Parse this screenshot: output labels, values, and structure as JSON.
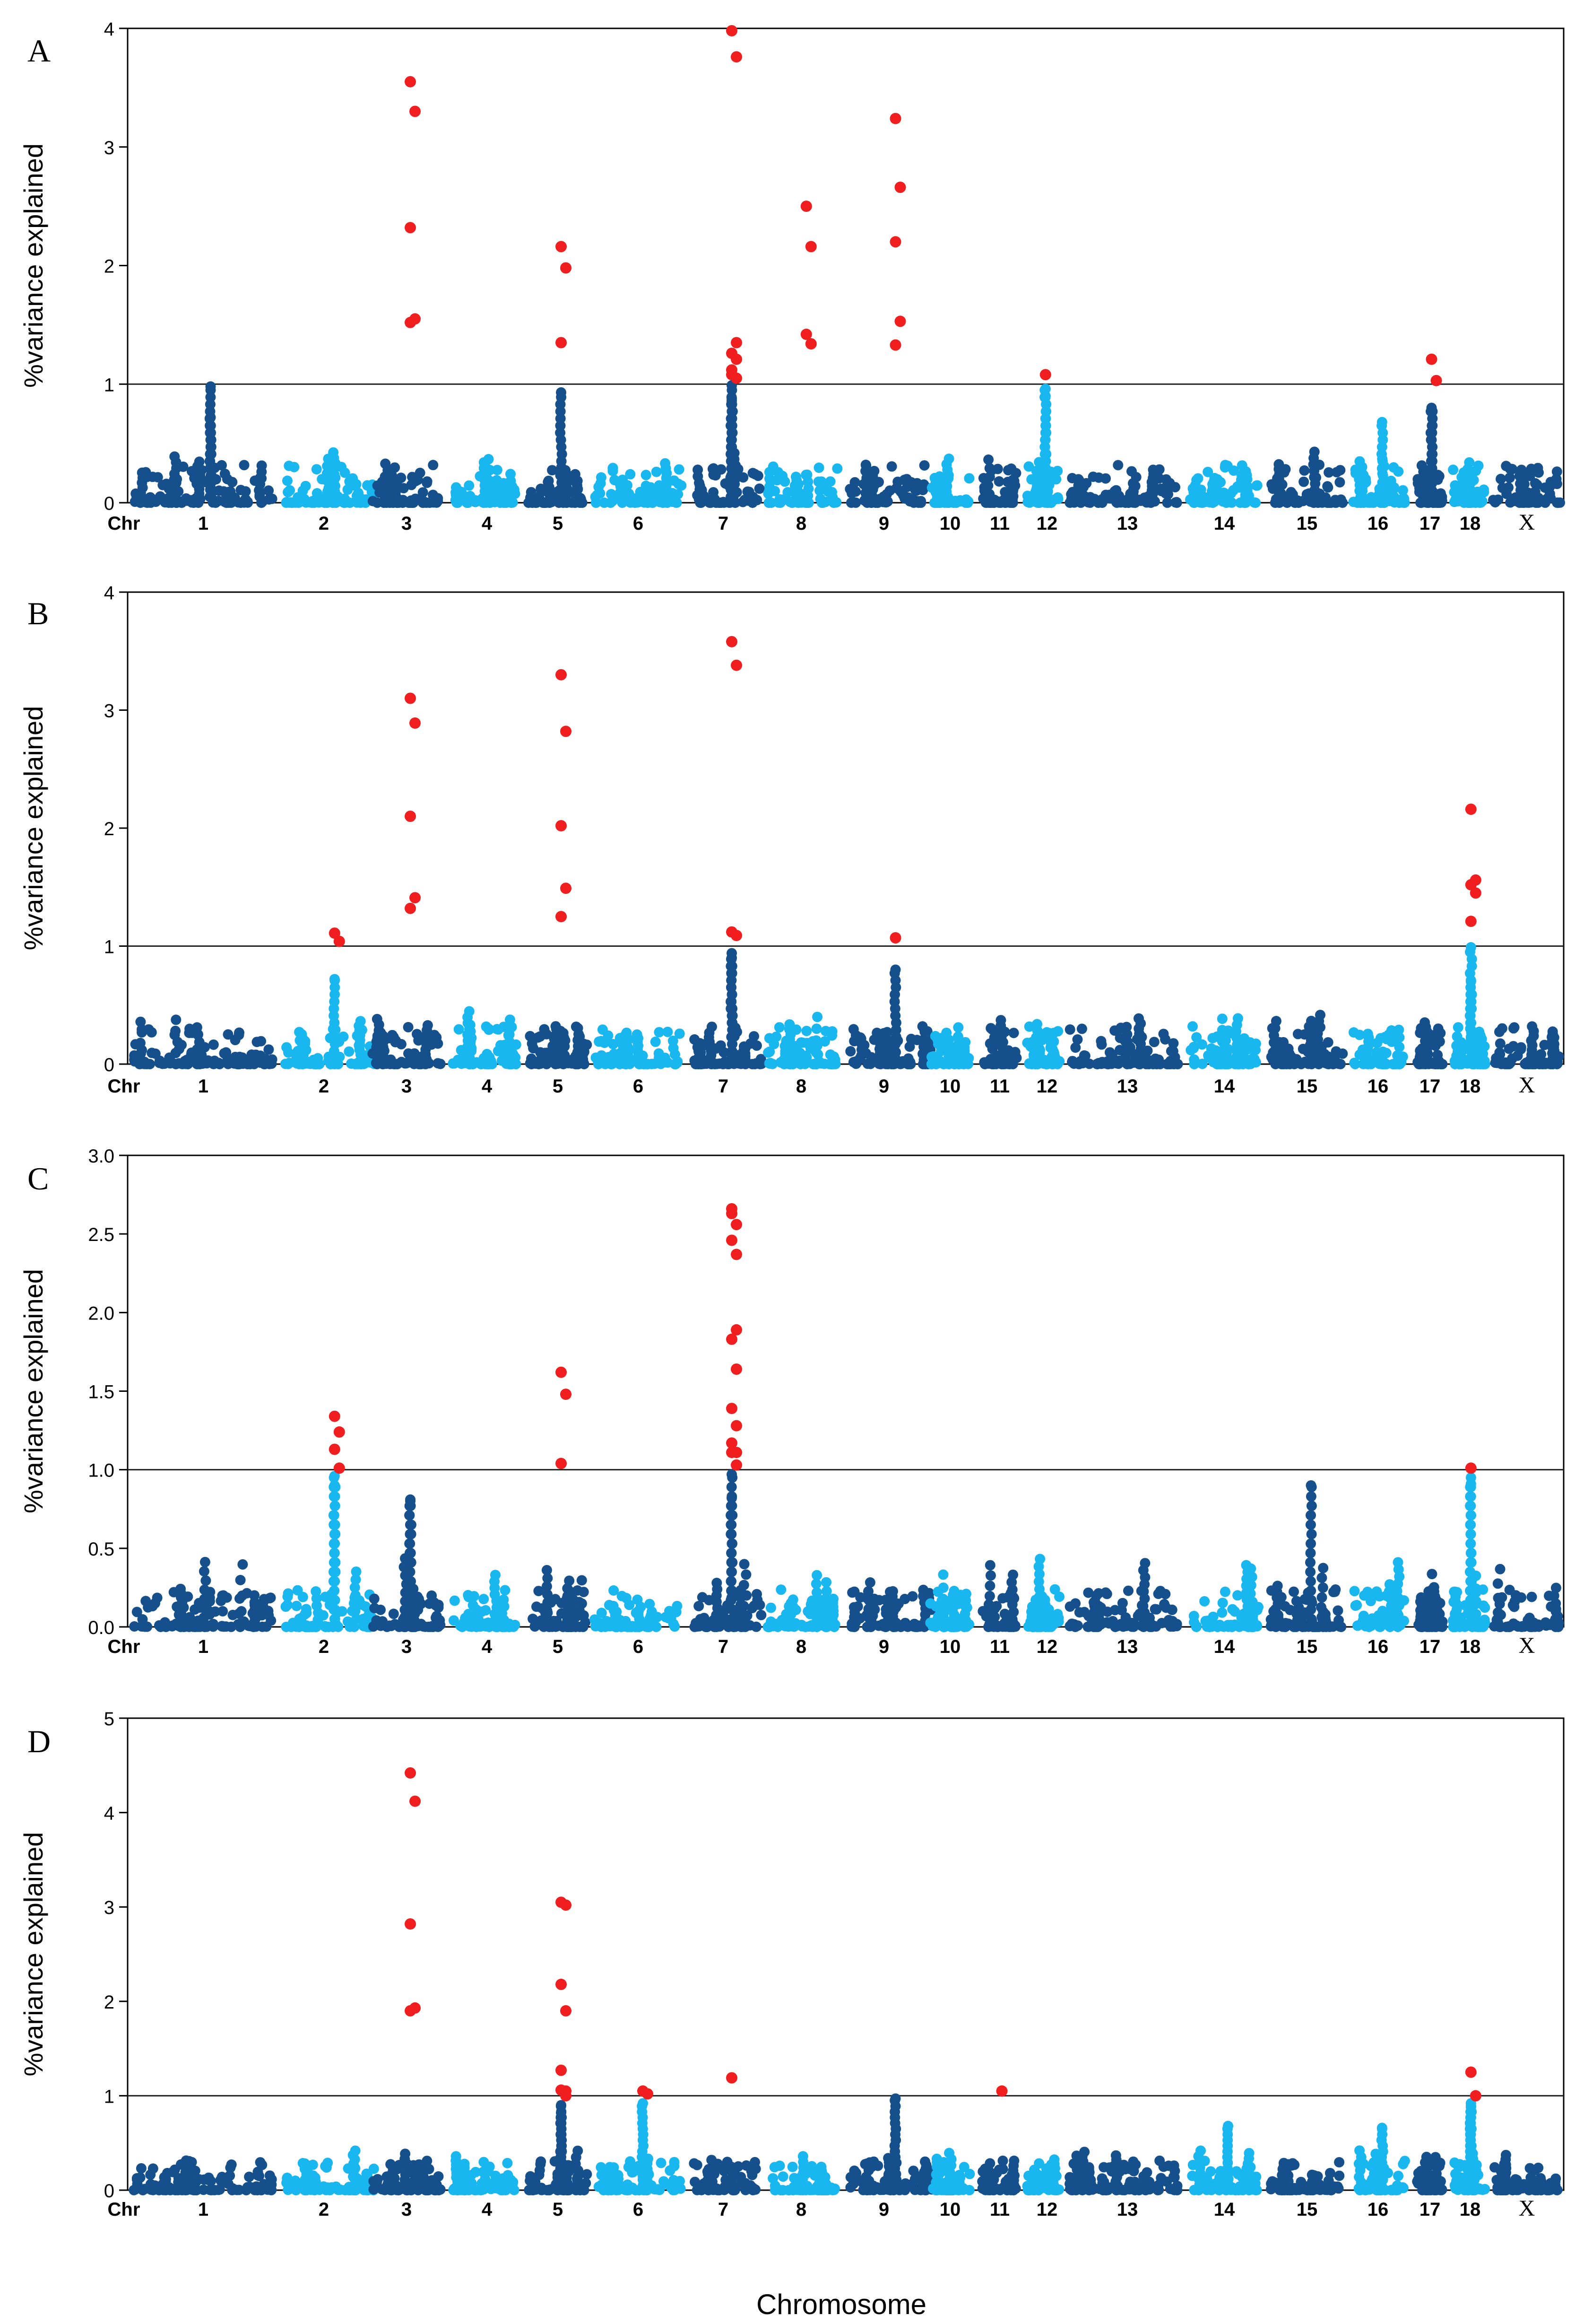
{
  "figure": {
    "x_title": "Chromosome",
    "chr_label": "Chr",
    "threshold": 1,
    "colors": {
      "dark": "#15508c",
      "light": "#19b7f0",
      "significant": "#f01e1e",
      "axis": "#000000"
    },
    "chromosomes": [
      "1",
      "2",
      "3",
      "4",
      "5",
      "6",
      "7",
      "8",
      "9",
      "10",
      "11",
      "12",
      "13",
      "14",
      "15",
      "16",
      "17",
      "18",
      "X"
    ]
  },
  "chart_data": [
    {
      "type": "scatter",
      "panel": "A",
      "ylabel": "%variance explained",
      "ylim": [
        0,
        4
      ],
      "yticks": [
        "0",
        "1",
        "2",
        "3",
        "4"
      ],
      "threshold": 1,
      "grid": false,
      "chromosome_labels": [
        "1",
        "2",
        "3",
        "4",
        "5",
        "6",
        "7",
        "8",
        "9",
        "10",
        "11",
        "12",
        "13",
        "14",
        "15",
        "16",
        "17",
        "18",
        "X"
      ],
      "significant_points": [
        {
          "chr": "3",
          "y": [
            3.55,
            3.3,
            2.32,
            1.55,
            1.52
          ]
        },
        {
          "chr": "5",
          "y": [
            2.16,
            1.98,
            1.35
          ]
        },
        {
          "chr": "7",
          "y": [
            3.98,
            3.76,
            1.26,
            1.21,
            1.12,
            1.35,
            1.08,
            1.05
          ]
        },
        {
          "chr": "8",
          "y": [
            2.5,
            2.16,
            1.42,
            1.34
          ]
        },
        {
          "chr": "9",
          "y": [
            3.24,
            2.66,
            2.2,
            1.53,
            1.33
          ]
        },
        {
          "chr": "12",
          "y": [
            1.08
          ]
        },
        {
          "chr": "17",
          "y": [
            1.21,
            1.03
          ]
        }
      ],
      "near_threshold_points": [
        {
          "chr": "1",
          "y": [
            0.98,
            0.72,
            0.65
          ]
        },
        {
          "chr": "5",
          "y": [
            0.93
          ]
        },
        {
          "chr": "7",
          "y": [
            0.88,
            0.99,
            0.86
          ]
        },
        {
          "chr": "12",
          "y": [
            0.96,
            0.9
          ]
        },
        {
          "chr": "16",
          "y": [
            0.68
          ]
        },
        {
          "chr": "17",
          "y": [
            0.8,
            0.78
          ]
        }
      ]
    },
    {
      "type": "scatter",
      "panel": "B",
      "ylabel": "%variance explained",
      "ylim": [
        0,
        4
      ],
      "yticks": [
        "0",
        "1",
        "2",
        "3",
        "4"
      ],
      "threshold": 1,
      "grid": false,
      "chromosome_labels": [
        "1",
        "2",
        "3",
        "4",
        "5",
        "6",
        "7",
        "8",
        "9",
        "10",
        "11",
        "12",
        "13",
        "14",
        "15",
        "16",
        "17",
        "18",
        "X"
      ],
      "significant_points": [
        {
          "chr": "2",
          "y": [
            1.11,
            1.04
          ]
        },
        {
          "chr": "3",
          "y": [
            3.1,
            2.89,
            2.1,
            1.41,
            1.32
          ]
        },
        {
          "chr": "5",
          "y": [
            3.3,
            2.82,
            2.02,
            1.49,
            1.25
          ]
        },
        {
          "chr": "7",
          "y": [
            3.58,
            3.38,
            1.12,
            1.09
          ]
        },
        {
          "chr": "9",
          "y": [
            1.07
          ]
        },
        {
          "chr": "18",
          "y": [
            2.16,
            1.56,
            1.52,
            1.45,
            1.21
          ]
        }
      ],
      "near_threshold_points": [
        {
          "chr": "2",
          "y": [
            0.72
          ]
        },
        {
          "chr": "7",
          "y": [
            0.94,
            0.9
          ]
        },
        {
          "chr": "9",
          "y": [
            0.8
          ]
        },
        {
          "chr": "18",
          "y": [
            0.99,
            0.7
          ]
        }
      ]
    },
    {
      "type": "scatter",
      "panel": "C",
      "ylabel": "%variance explained",
      "ylim": [
        0,
        3
      ],
      "yticks": [
        "0.0",
        "0.5",
        "1.0",
        "1.5",
        "2.0",
        "2.5",
        "3.0"
      ],
      "threshold": 1,
      "grid": false,
      "chromosome_labels": [
        "1",
        "2",
        "3",
        "4",
        "5",
        "6",
        "7",
        "8",
        "9",
        "10",
        "11",
        "12",
        "13",
        "14",
        "15",
        "16",
        "17",
        "18",
        "X"
      ],
      "significant_points": [
        {
          "chr": "2",
          "y": [
            1.34,
            1.24,
            1.13,
            1.01
          ]
        },
        {
          "chr": "5",
          "y": [
            1.62,
            1.48,
            1.04
          ]
        },
        {
          "chr": "7",
          "y": [
            2.63,
            2.37,
            1.11,
            1.03,
            2.66,
            2.56,
            2.46,
            1.89,
            1.83,
            1.64,
            1.39,
            1.28,
            1.17,
            1.11
          ]
        },
        {
          "chr": "18",
          "y": [
            1.01
          ]
        }
      ],
      "near_threshold_points": [
        {
          "chr": "2",
          "y": [
            0.96,
            0.9
          ]
        },
        {
          "chr": "3",
          "y": [
            0.81,
            0.8
          ]
        },
        {
          "chr": "7",
          "y": [
            0.82,
            0.97
          ]
        },
        {
          "chr": "15",
          "y": [
            0.9
          ]
        },
        {
          "chr": "18",
          "y": [
            0.95,
            0.91
          ]
        }
      ]
    },
    {
      "type": "scatter",
      "panel": "D",
      "ylabel": "%variance explained",
      "ylim": [
        0,
        5
      ],
      "yticks": [
        "0",
        "1",
        "2",
        "3",
        "4",
        "5"
      ],
      "threshold": 1,
      "grid": false,
      "chromosome_labels": [
        "1",
        "2",
        "3",
        "4",
        "5",
        "6",
        "7",
        "8",
        "9",
        "10",
        "11",
        "12",
        "13",
        "14",
        "15",
        "16",
        "17",
        "18",
        "X"
      ],
      "significant_points": [
        {
          "chr": "3",
          "y": [
            4.42,
            4.12,
            2.82,
            1.93,
            1.9
          ]
        },
        {
          "chr": "5",
          "y": [
            1.06,
            1.0,
            3.05,
            3.02,
            2.18,
            1.9,
            1.27,
            1.05
          ]
        },
        {
          "chr": "6",
          "y": [
            1.05,
            1.02
          ]
        },
        {
          "chr": "7",
          "y": [
            1.19
          ]
        },
        {
          "chr": "11",
          "y": [
            1.05
          ]
        },
        {
          "chr": "18",
          "y": [
            1.25,
            1.0
          ]
        }
      ],
      "near_threshold_points": [
        {
          "chr": "5",
          "y": [
            0.9,
            0.82
          ]
        },
        {
          "chr": "6",
          "y": [
            0.92
          ]
        },
        {
          "chr": "9",
          "y": [
            0.97
          ]
        },
        {
          "chr": "14",
          "y": [
            0.68
          ]
        },
        {
          "chr": "16",
          "y": [
            0.66
          ]
        },
        {
          "chr": "18",
          "y": [
            0.92,
            0.88
          ]
        }
      ]
    }
  ]
}
